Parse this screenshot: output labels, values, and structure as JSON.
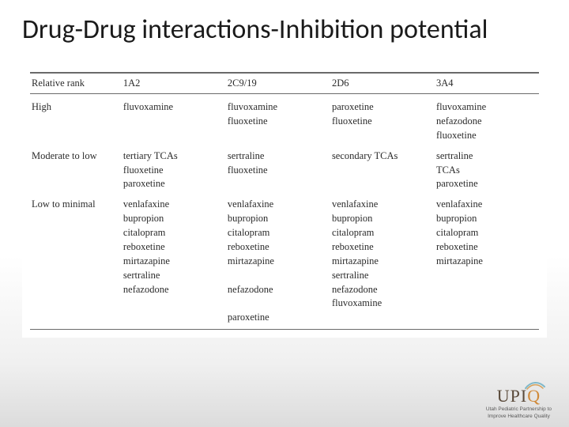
{
  "title": "Drug-Drug interactions-Inhibition potential",
  "columns": [
    "Relative rank",
    "1A2",
    "2C9/19",
    "2D6",
    "3A4"
  ],
  "groups": [
    {
      "rank": "High",
      "rows": [
        [
          "fluvoxamine",
          "fluvoxamine",
          "paroxetine",
          "fluvoxamine"
        ],
        [
          "",
          "fluoxetine",
          "fluoxetine",
          "nefazodone"
        ],
        [
          "",
          "",
          "",
          "fluoxetine"
        ]
      ]
    },
    {
      "rank": "Moderate to low",
      "rows": [
        [
          "tertiary TCAs",
          "sertraline",
          "secondary TCAs",
          "sertraline"
        ],
        [
          "fluoxetine",
          "fluoxetine",
          "",
          "TCAs"
        ],
        [
          "paroxetine",
          "",
          "",
          "paroxetine"
        ]
      ]
    },
    {
      "rank": "Low to minimal",
      "rows": [
        [
          "venlafaxine",
          "venlafaxine",
          "venlafaxine",
          "venlafaxine"
        ],
        [
          "bupropion",
          "bupropion",
          "bupropion",
          "bupropion"
        ],
        [
          "citalopram",
          "citalopram",
          "citalopram",
          "citalopram"
        ],
        [
          "reboxetine",
          "reboxetine",
          "reboxetine",
          "reboxetine"
        ],
        [
          "mirtazapine",
          "mirtazapine",
          "mirtazapine",
          "mirtazapine"
        ],
        [
          "sertraline",
          "",
          "sertraline",
          ""
        ],
        [
          "nefazodone",
          "nefazodone",
          "nefazodone",
          ""
        ],
        [
          "",
          "",
          "fluvoxamine",
          ""
        ],
        [
          "",
          "paroxetine",
          "",
          ""
        ]
      ]
    }
  ],
  "logo": {
    "text": "UPIQ",
    "sub1": "Utah Pediatric Partnership to",
    "sub2": "Improve Healthcare Quality"
  }
}
